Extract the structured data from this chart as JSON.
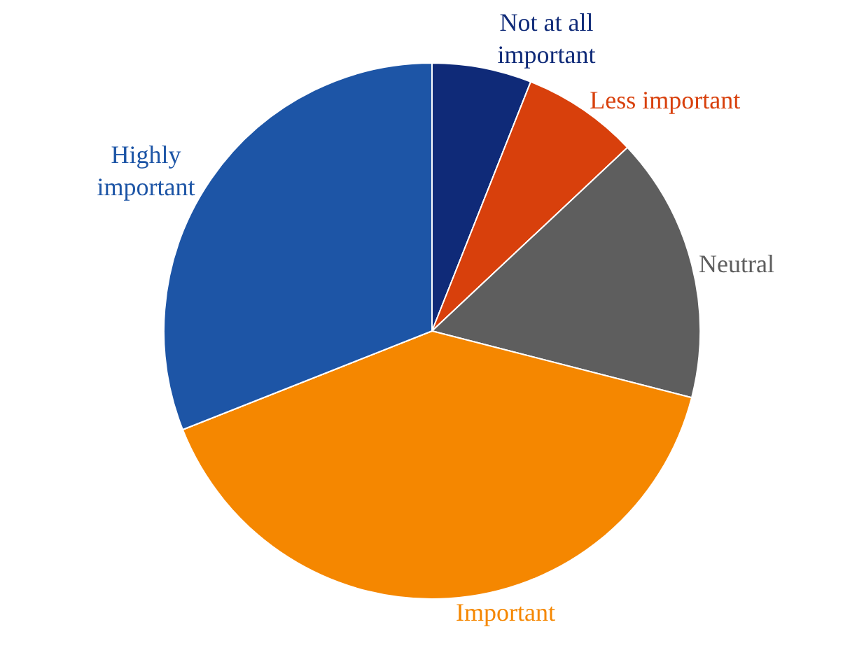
{
  "chart_data": {
    "type": "pie",
    "categories": [
      "Not at all\nimportant",
      "Less important",
      "Neutral",
      "Important",
      "Highly\nimportant"
    ],
    "values": [
      6,
      7,
      16,
      40,
      31
    ],
    "colors": [
      "#0f2a78",
      "#d8400c",
      "#5e5e5e",
      "#f58700",
      "#1d55a6"
    ],
    "legend": false
  }
}
